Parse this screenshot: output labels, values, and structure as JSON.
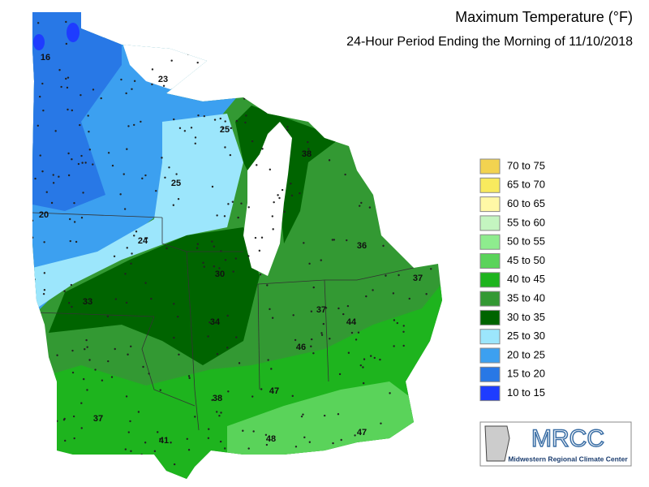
{
  "header": {
    "title": "Maximum Temperature (°F)",
    "subtitle": "24-Hour Period Ending the Morning of 11/10/2018"
  },
  "legend": [
    {
      "label": "70 to 75",
      "color": "#f2d350"
    },
    {
      "label": "65 to 70",
      "color": "#f8ea5e"
    },
    {
      "label": "60 to 65",
      "color": "#fff8a6"
    },
    {
      "label": "55 to 60",
      "color": "#c4f5c0"
    },
    {
      "label": "50 to 55",
      "color": "#8eec8e"
    },
    {
      "label": "45 to 50",
      "color": "#5ad35a"
    },
    {
      "label": "40 to 45",
      "color": "#1eb41e"
    },
    {
      "label": "35 to 40",
      "color": "#339933"
    },
    {
      "label": "30 to 35",
      "color": "#006400"
    },
    {
      "label": "25 to 30",
      "color": "#9ce6fc"
    },
    {
      "label": "20 to 25",
      "color": "#3ca0f0"
    },
    {
      "label": "15 to 20",
      "color": "#2878e6"
    },
    {
      "label": "10 to 15",
      "color": "#1e3cff"
    }
  ],
  "stations": [
    16,
    23,
    25,
    25,
    20,
    24,
    30,
    33,
    34,
    38,
    36,
    37,
    37,
    44,
    46,
    47,
    38,
    37,
    41,
    48,
    47
  ],
  "logo": {
    "acronym": "MRCC",
    "name": "Midwestern Regional Climate Center"
  }
}
